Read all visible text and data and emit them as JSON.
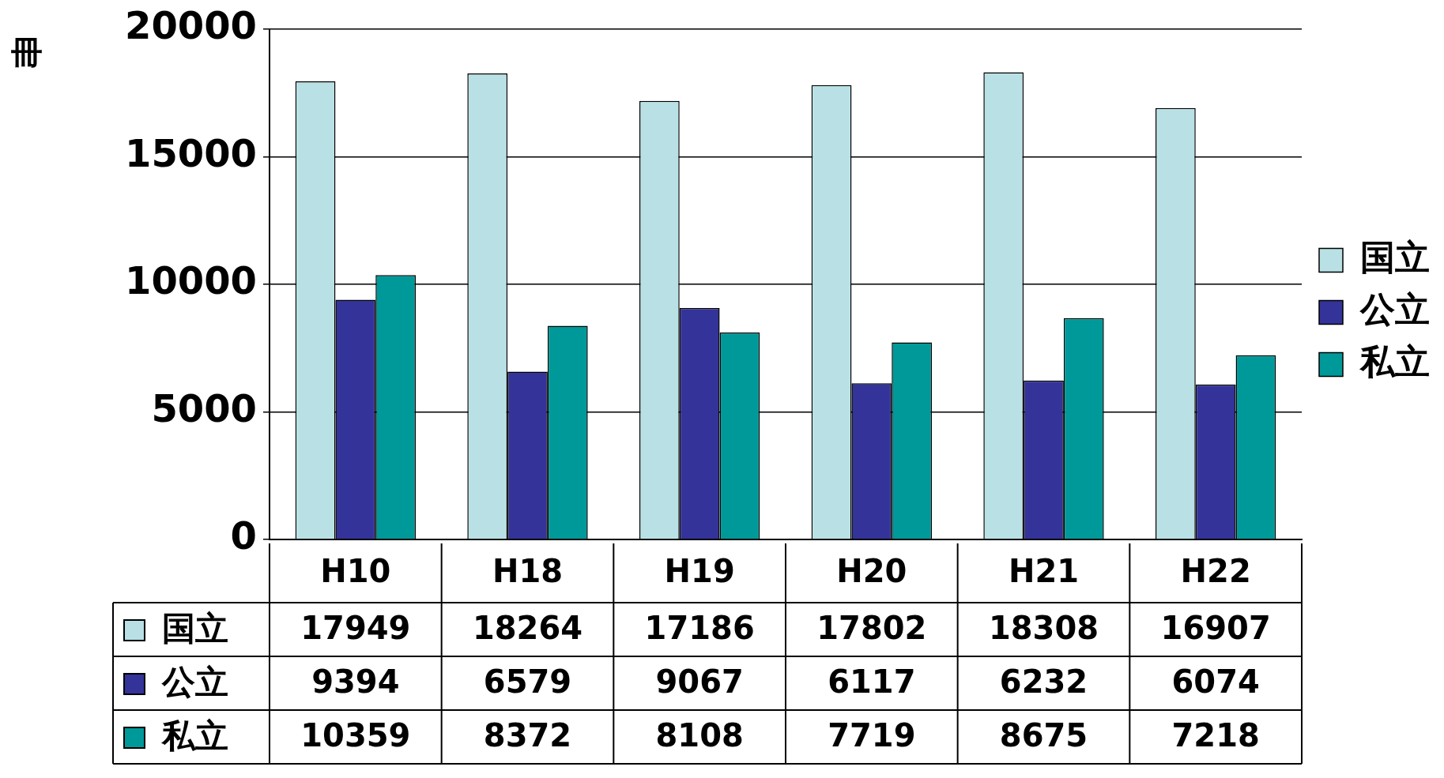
{
  "chart_data": {
    "type": "bar",
    "ylabel": "冊",
    "categories": [
      "H10",
      "H18",
      "H19",
      "H20",
      "H21",
      "H22"
    ],
    "series": [
      {
        "name": "国立",
        "color": "#b9e1e5",
        "values": [
          17949,
          18264,
          17186,
          17802,
          18308,
          16907
        ]
      },
      {
        "name": "公立",
        "color": "#333399",
        "values": [
          9394,
          6579,
          9067,
          6117,
          6232,
          6074
        ]
      },
      {
        "name": "私立",
        "color": "#009999",
        "values": [
          10359,
          8372,
          8108,
          7719,
          8675,
          7218
        ]
      }
    ],
    "ylim": [
      0,
      20000
    ],
    "yticks": [
      0,
      5000,
      10000,
      15000,
      20000
    ],
    "grid": "y",
    "legend": "right",
    "data_labels": true
  }
}
